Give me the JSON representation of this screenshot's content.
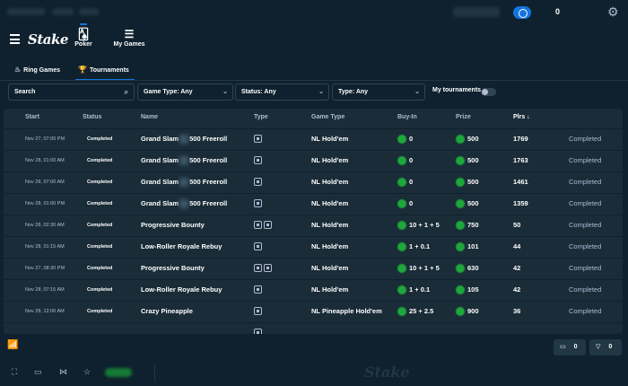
{
  "status_bar": {
    "balance": "0"
  },
  "header": {
    "logo": "Stake",
    "nav": [
      {
        "label": "Poker",
        "icon": "cards-icon",
        "active": true
      },
      {
        "label": "My Games",
        "icon": "games-stack-icon",
        "active": false
      }
    ]
  },
  "subtabs": [
    {
      "label": "Ring Games",
      "icon": "flame-icon"
    },
    {
      "label": "Tournaments",
      "icon": "trophy-icon",
      "active": true
    }
  ],
  "filters": {
    "search_placeholder": "Search",
    "game_type": "Game Type: Any",
    "status": "Status: Any",
    "type": "Type: Any",
    "my_tournaments_label": "My tournaments"
  },
  "table": {
    "columns": [
      "Start",
      "Status",
      "Name",
      "Type",
      "Game Type",
      "Buy-In",
      "Prize",
      "Plrs ↓"
    ],
    "rows": [
      {
        "start": "Nov 27, 07:00 PM",
        "status": "Completed",
        "name_a": "Grand Slam",
        "name_b": "500 Freeroll",
        "type_icons": 1,
        "game_type": "NL Hold'em",
        "buyin": "0",
        "prize": "500",
        "plrs": "1769",
        "state": "Completed"
      },
      {
        "start": "Nov 28, 01:00 AM",
        "status": "Completed",
        "name_a": "Grand Slam",
        "name_b": "500 Freeroll",
        "type_icons": 1,
        "game_type": "NL Hold'em",
        "buyin": "0",
        "prize": "500",
        "plrs": "1763",
        "state": "Completed"
      },
      {
        "start": "Nov 28, 07:00 AM",
        "status": "Completed",
        "name_a": "Grand Slam",
        "name_b": "500 Freeroll",
        "type_icons": 1,
        "game_type": "NL Hold'em",
        "buyin": "0",
        "prize": "500",
        "plrs": "1461",
        "state": "Completed"
      },
      {
        "start": "Nov 28, 01:00 PM",
        "status": "Completed",
        "name_a": "Grand Slam",
        "name_b": "500 Freeroll",
        "type_icons": 1,
        "game_type": "NL Hold'em",
        "buyin": "0",
        "prize": "500",
        "plrs": "1359",
        "state": "Completed"
      },
      {
        "start": "Nov 28, 02:30 AM",
        "status": "Completed",
        "name_a": "Progressive Bounty",
        "name_b": "",
        "type_icons": 2,
        "game_type": "NL Hold'em",
        "buyin": "10 + 1 + 5",
        "prize": "750",
        "plrs": "50",
        "state": "Completed"
      },
      {
        "start": "Nov 28, 01:15 AM",
        "status": "Completed",
        "name_a": "Low-Roller Royale Rebuy",
        "name_b": "",
        "type_icons": 1,
        "game_type": "NL Hold'em",
        "buyin": "1 + 0.1",
        "prize": "101",
        "plrs": "44",
        "state": "Completed"
      },
      {
        "start": "Nov 27, 08:30 PM",
        "status": "Completed",
        "name_a": "Progressive Bounty",
        "name_b": "",
        "type_icons": 2,
        "game_type": "NL Hold'em",
        "buyin": "10 + 1 + 5",
        "prize": "630",
        "plrs": "42",
        "state": "Completed"
      },
      {
        "start": "Nov 28, 07:15 AM",
        "status": "Completed",
        "name_a": "Low-Roller Royale Rebuy",
        "name_b": "",
        "type_icons": 1,
        "game_type": "NL Hold'em",
        "buyin": "1 + 0.1",
        "prize": "105",
        "plrs": "42",
        "state": "Completed"
      },
      {
        "start": "Nov 28, 12:00 AM",
        "status": "Completed",
        "name_a": "Crazy Pineapple",
        "name_b": "",
        "type_icons": 1,
        "game_type": "NL Pineapple Hold'em",
        "buyin": "25 + 2.5",
        "prize": "900",
        "plrs": "36",
        "state": "Completed"
      },
      {
        "start": "",
        "status": "",
        "name_a": "",
        "name_b": "",
        "type_icons": 1,
        "game_type": "",
        "buyin": "",
        "prize": "",
        "plrs": "",
        "state": ""
      }
    ]
  },
  "bottom": {
    "chat_count": "0",
    "filter_count": "0",
    "watermark": "Stake"
  },
  "colors": {
    "bg": "#0f212e",
    "panel": "#1a2c38",
    "accent": "#1475e1",
    "coin": "#1ea83c",
    "muted": "#b1bad3"
  }
}
